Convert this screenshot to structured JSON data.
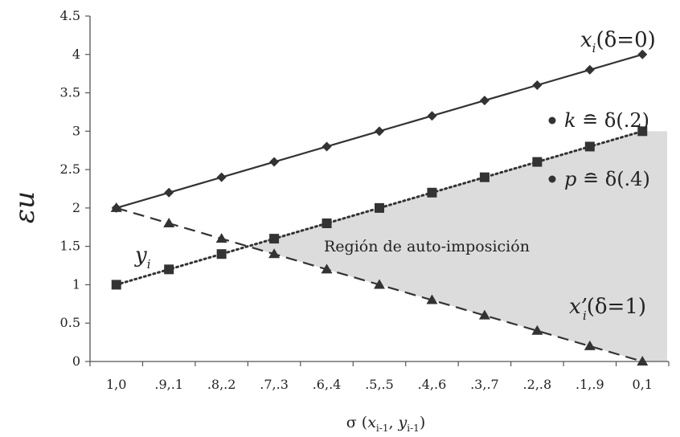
{
  "chart_data": {
    "type": "line",
    "categories": [
      "1,0",
      ".9,.1",
      ".8,.2",
      ".7,.3",
      ".6,.4",
      ".5,.5",
      ".4,.6",
      ".3,.7",
      ".2,.8",
      ".1,.9",
      "0,1"
    ],
    "ylabel": "εu",
    "xlabel": {
      "sigma": "σ",
      "open": " (",
      "x": "x",
      "x_sub": "i-1",
      "comma": ", ",
      "y": "y",
      "y_sub": "i-1",
      "close": ")"
    },
    "ylim": [
      0,
      4.5
    ],
    "yticks": [
      "0",
      "0.5",
      "1",
      "1.5",
      "2",
      "2.5",
      "3",
      "3.5",
      "4",
      "4.5"
    ],
    "grid": false,
    "series": [
      {
        "key": "x",
        "marker": "diamond",
        "line": "solid",
        "color": "#333333",
        "values": [
          2.0,
          2.2,
          2.4,
          2.6,
          2.8,
          3.0,
          3.2,
          3.4,
          3.6,
          3.8,
          4.0
        ]
      },
      {
        "key": "y",
        "marker": "square",
        "line": "dotted",
        "color": "#333333",
        "values": [
          1.0,
          1.2,
          1.4,
          1.6,
          1.8,
          2.0,
          2.2,
          2.4,
          2.6,
          2.8,
          3.0
        ]
      },
      {
        "key": "xprime",
        "marker": "triangle",
        "line": "dashed",
        "color": "#333333",
        "values": [
          2.0,
          1.8,
          1.6,
          1.4,
          1.2,
          1.0,
          0.8,
          0.6,
          0.4,
          0.2,
          0.0
        ]
      }
    ],
    "region": {
      "label": "Región de auto-imposición",
      "fill": "#dcdcdc"
    },
    "annotations": {
      "x_series": {
        "var": "x",
        "sub": "i",
        "rest": "(δ=0)"
      },
      "xprime_series": {
        "var": "x",
        "prime": "’",
        "sub": "i",
        "rest": "(δ=1)"
      },
      "y_series": {
        "var": "y",
        "sub": "i"
      },
      "k": {
        "var": "k",
        "rest": " ≘ δ(.2)"
      },
      "p": {
        "var": "p",
        "rest": " ≘ δ(.4)"
      }
    }
  }
}
